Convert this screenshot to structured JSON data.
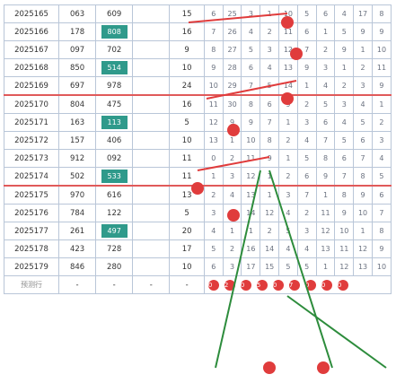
{
  "rows": [
    {
      "id": "2025165",
      "a": "063",
      "b": "609",
      "c": "",
      "d": "15",
      "n": [
        "6",
        "25",
        "3",
        "1",
        "10",
        "5",
        "6",
        "4",
        "17",
        "8"
      ]
    },
    {
      "id": "2025166",
      "a": "178",
      "b": "808",
      "c": "",
      "d": "16",
      "n": [
        "7",
        "26",
        "4",
        "2",
        "11",
        "6",
        "1",
        "5",
        "9",
        "9"
      ]
    },
    {
      "id": "2025167",
      "a": "097",
      "b": "702",
      "c": "",
      "d": "9",
      "n": [
        "8",
        "27",
        "5",
        "3",
        "12",
        "7",
        "2",
        "9",
        "1",
        "10"
      ]
    },
    {
      "id": "2025168",
      "a": "850",
      "b": "514",
      "c": "",
      "d": "10",
      "n": [
        "9",
        "28",
        "6",
        "4",
        "13",
        "9",
        "3",
        "1",
        "2",
        "11"
      ]
    },
    {
      "id": "2025169",
      "a": "697",
      "b": "978",
      "c": "",
      "d": "24",
      "n": [
        "10",
        "29",
        "7",
        "5",
        "14",
        "1",
        "4",
        "2",
        "3",
        "9"
      ]
    },
    {
      "id": "2025170",
      "a": "804",
      "b": "475",
      "c": "",
      "d": "16",
      "n": [
        "11",
        "30",
        "8",
        "6",
        "9",
        "2",
        "5",
        "3",
        "4",
        "1"
      ]
    },
    {
      "id": "2025171",
      "a": "163",
      "b": "113",
      "c": "",
      "d": "5",
      "n": [
        "12",
        "9",
        "9",
        "7",
        "1",
        "3",
        "6",
        "4",
        "5",
        "2"
      ]
    },
    {
      "id": "2025172",
      "a": "157",
      "b": "406",
      "c": "",
      "d": "10",
      "n": [
        "13",
        "1",
        "10",
        "8",
        "2",
        "4",
        "7",
        "5",
        "6",
        "3"
      ]
    },
    {
      "id": "2025173",
      "a": "912",
      "b": "092",
      "c": "",
      "d": "11",
      "n": [
        "0",
        "2",
        "11",
        "9",
        "1",
        "5",
        "8",
        "6",
        "7",
        "4"
      ]
    },
    {
      "id": "2025174",
      "a": "502",
      "b": "533",
      "c": "",
      "d": "11",
      "n": [
        "1",
        "3",
        "12",
        "1",
        "2",
        "6",
        "9",
        "7",
        "8",
        "5"
      ]
    },
    {
      "id": "2025175",
      "a": "970",
      "b": "616",
      "c": "",
      "d": "13",
      "n": [
        "2",
        "4",
        "13",
        "1",
        "3",
        "7",
        "1",
        "8",
        "9",
        "6"
      ]
    },
    {
      "id": "2025176",
      "a": "784",
      "b": "122",
      "c": "",
      "d": "5",
      "n": [
        "3",
        "5",
        "14",
        "12",
        "4",
        "2",
        "11",
        "9",
        "10",
        "7"
      ]
    },
    {
      "id": "2025177",
      "a": "261",
      "b": "497",
      "c": "",
      "d": "20",
      "n": [
        "4",
        "1",
        "1",
        "2",
        "5",
        "3",
        "12",
        "10",
        "1",
        "8"
      ]
    },
    {
      "id": "2025178",
      "a": "423",
      "b": "728",
      "c": "",
      "d": "17",
      "n": [
        "5",
        "2",
        "16",
        "14",
        "4",
        "4",
        "13",
        "11",
        "12",
        "9"
      ]
    },
    {
      "id": "2025179",
      "a": "846",
      "b": "280",
      "c": "",
      "d": "10",
      "n": [
        "6",
        "3",
        "17",
        "15",
        "5",
        "5",
        "1",
        "12",
        "13",
        "10"
      ]
    }
  ],
  "footer": {
    "id": "预测行",
    "a": "-",
    "b": "-",
    "c": "-",
    "d": "-",
    "balls": [
      "0",
      "2",
      "0",
      "5",
      "0",
      "7",
      "0",
      "0",
      "0"
    ]
  },
  "colors": {
    "accent": "#2f9a8b",
    "ball": "#e03c3c",
    "arrow": "#2d8c3c",
    "border": "#b9c6d8"
  }
}
